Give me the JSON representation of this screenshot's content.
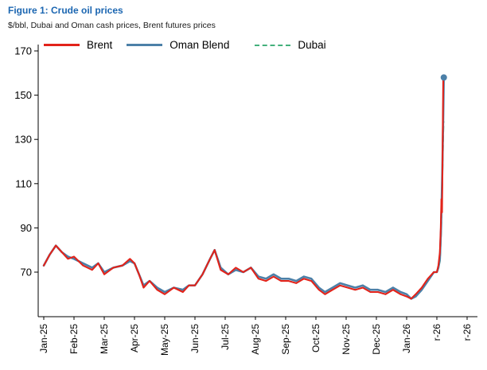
{
  "header": {
    "title": "Figure 1: Crude oil prices",
    "subtitle": "$/bbl, Dubai and Oman cash prices, Brent futures prices"
  },
  "colors": {
    "title_accent": "#1B66B1",
    "axis": "#000000",
    "brent_red": "#E2231A",
    "oman_blue": "#4C80A8",
    "dubai_green": "#44B17C"
  },
  "chart_data": {
    "type": "line",
    "title": "Figure 1: Crude oil prices",
    "subtitle": "$/bbl, Dubai and Oman cash prices, Brent futures prices",
    "xlabel": "",
    "ylabel": "$/bbl",
    "ylim": [
      50,
      170
    ],
    "yticks": [
      70,
      90,
      110,
      130,
      150,
      170
    ],
    "grid": false,
    "legend_position": "top",
    "x_unit": "months since Jan-2025 (tick index = month)",
    "xtick_labels": [
      "Jan-25",
      "Feb-25",
      "Mar-25",
      "Apr-25",
      "May-25",
      "Jun-25",
      "Jul-25",
      "Aug-25",
      "Sep-25",
      "Oct-25",
      "Nov-25",
      "Dec-25",
      "Jan-26",
      "r-26",
      "r-26"
    ],
    "series": [
      {
        "name": "Dubai",
        "color": "#44B17C",
        "style": "dashed",
        "end_marker": false,
        "points": [
          [
            0.0,
            73
          ],
          [
            0.2,
            78
          ],
          [
            0.4,
            82
          ],
          [
            0.6,
            79
          ],
          [
            0.8,
            77
          ],
          [
            1.0,
            76
          ],
          [
            1.3,
            74
          ],
          [
            1.6,
            72
          ],
          [
            1.8,
            74
          ],
          [
            2.0,
            70
          ],
          [
            2.3,
            72
          ],
          [
            2.6,
            73
          ],
          [
            2.85,
            75
          ],
          [
            3.0,
            74
          ],
          [
            3.15,
            69
          ],
          [
            3.3,
            64
          ],
          [
            3.5,
            66
          ],
          [
            3.75,
            63
          ],
          [
            4.0,
            61
          ],
          [
            4.3,
            63
          ],
          [
            4.6,
            62
          ],
          [
            4.8,
            64
          ],
          [
            5.0,
            64
          ],
          [
            5.25,
            69
          ],
          [
            5.5,
            76
          ],
          [
            5.65,
            80
          ],
          [
            5.85,
            72
          ],
          [
            6.1,
            69
          ],
          [
            6.35,
            71
          ],
          [
            6.6,
            70
          ],
          [
            6.85,
            72
          ],
          [
            7.1,
            68
          ],
          [
            7.35,
            67
          ],
          [
            7.6,
            69
          ],
          [
            7.85,
            67
          ],
          [
            8.1,
            67
          ],
          [
            8.35,
            66
          ],
          [
            8.6,
            68
          ],
          [
            8.85,
            67
          ],
          [
            9.1,
            63
          ],
          [
            9.3,
            61
          ],
          [
            9.55,
            63
          ],
          [
            9.8,
            65
          ],
          [
            10.05,
            64
          ],
          [
            10.3,
            63
          ],
          [
            10.55,
            64
          ],
          [
            10.8,
            62
          ],
          [
            11.05,
            62
          ],
          [
            11.3,
            61
          ],
          [
            11.55,
            63
          ],
          [
            11.8,
            61
          ],
          [
            12.0,
            60
          ],
          [
            12.15,
            58
          ],
          [
            12.3,
            59
          ],
          [
            12.5,
            62
          ],
          [
            12.7,
            66
          ],
          [
            12.9,
            70
          ],
          [
            13.0,
            70
          ],
          [
            13.05,
            72
          ],
          [
            13.1,
            75
          ],
          [
            13.14,
            88
          ],
          [
            13.18,
            112
          ],
          [
            13.21,
            133
          ],
          [
            13.22,
            138
          ]
        ]
      },
      {
        "name": "Oman Blend",
        "color": "#4C80A8",
        "style": "solid",
        "end_marker": true,
        "points": [
          [
            0.0,
            73
          ],
          [
            0.2,
            78
          ],
          [
            0.4,
            82
          ],
          [
            0.6,
            79
          ],
          [
            0.8,
            77
          ],
          [
            1.0,
            76
          ],
          [
            1.3,
            74
          ],
          [
            1.6,
            72
          ],
          [
            1.8,
            74
          ],
          [
            2.0,
            70
          ],
          [
            2.3,
            72
          ],
          [
            2.6,
            73
          ],
          [
            2.85,
            75
          ],
          [
            3.0,
            74
          ],
          [
            3.15,
            69
          ],
          [
            3.3,
            64
          ],
          [
            3.5,
            66
          ],
          [
            3.75,
            63
          ],
          [
            4.0,
            61
          ],
          [
            4.3,
            63
          ],
          [
            4.6,
            62
          ],
          [
            4.8,
            64
          ],
          [
            5.0,
            64
          ],
          [
            5.25,
            69
          ],
          [
            5.5,
            76
          ],
          [
            5.65,
            80
          ],
          [
            5.85,
            72
          ],
          [
            6.1,
            69
          ],
          [
            6.35,
            71
          ],
          [
            6.6,
            70
          ],
          [
            6.85,
            72
          ],
          [
            7.1,
            68
          ],
          [
            7.35,
            67
          ],
          [
            7.6,
            69
          ],
          [
            7.85,
            67
          ],
          [
            8.1,
            67
          ],
          [
            8.35,
            66
          ],
          [
            8.6,
            68
          ],
          [
            8.85,
            67
          ],
          [
            9.1,
            63
          ],
          [
            9.3,
            61
          ],
          [
            9.55,
            63
          ],
          [
            9.8,
            65
          ],
          [
            10.05,
            64
          ],
          [
            10.3,
            63
          ],
          [
            10.55,
            64
          ],
          [
            10.8,
            62
          ],
          [
            11.05,
            62
          ],
          [
            11.3,
            61
          ],
          [
            11.55,
            63
          ],
          [
            11.8,
            61
          ],
          [
            12.0,
            60
          ],
          [
            12.15,
            58
          ],
          [
            12.3,
            59
          ],
          [
            12.5,
            62
          ],
          [
            12.7,
            66
          ],
          [
            12.9,
            70
          ],
          [
            13.0,
            70
          ],
          [
            13.05,
            72
          ],
          [
            13.1,
            76
          ],
          [
            13.14,
            90
          ],
          [
            13.18,
            115
          ],
          [
            13.21,
            140
          ],
          [
            13.23,
            158
          ]
        ]
      },
      {
        "name": "Brent",
        "color": "#E2231A",
        "style": "solid",
        "end_marker": false,
        "points": [
          [
            0.0,
            73
          ],
          [
            0.2,
            78
          ],
          [
            0.4,
            82
          ],
          [
            0.6,
            79
          ],
          [
            0.8,
            76
          ],
          [
            1.0,
            77
          ],
          [
            1.3,
            73
          ],
          [
            1.6,
            71
          ],
          [
            1.8,
            74
          ],
          [
            2.0,
            69
          ],
          [
            2.3,
            72
          ],
          [
            2.6,
            73
          ],
          [
            2.85,
            76
          ],
          [
            3.0,
            74
          ],
          [
            3.15,
            69
          ],
          [
            3.3,
            63
          ],
          [
            3.5,
            66
          ],
          [
            3.75,
            62
          ],
          [
            4.0,
            60
          ],
          [
            4.3,
            63
          ],
          [
            4.6,
            61
          ],
          [
            4.8,
            64
          ],
          [
            5.0,
            64
          ],
          [
            5.25,
            69
          ],
          [
            5.5,
            76
          ],
          [
            5.65,
            80
          ],
          [
            5.85,
            71
          ],
          [
            6.1,
            69
          ],
          [
            6.35,
            72
          ],
          [
            6.6,
            70
          ],
          [
            6.85,
            72
          ],
          [
            7.1,
            67
          ],
          [
            7.35,
            66
          ],
          [
            7.6,
            68
          ],
          [
            7.85,
            66
          ],
          [
            8.1,
            66
          ],
          [
            8.35,
            65
          ],
          [
            8.6,
            67
          ],
          [
            8.85,
            66
          ],
          [
            9.1,
            62
          ],
          [
            9.3,
            60
          ],
          [
            9.55,
            62
          ],
          [
            9.8,
            64
          ],
          [
            10.05,
            63
          ],
          [
            10.3,
            62
          ],
          [
            10.55,
            63
          ],
          [
            10.8,
            61
          ],
          [
            11.05,
            61
          ],
          [
            11.3,
            60
          ],
          [
            11.55,
            62
          ],
          [
            11.8,
            60
          ],
          [
            12.0,
            59
          ],
          [
            12.15,
            58
          ],
          [
            12.3,
            60
          ],
          [
            12.5,
            63
          ],
          [
            12.7,
            67
          ],
          [
            12.9,
            70
          ],
          [
            13.0,
            70
          ],
          [
            13.05,
            73
          ],
          [
            13.1,
            79
          ],
          [
            13.13,
            90
          ],
          [
            13.15,
            103
          ],
          [
            13.17,
            97
          ],
          [
            13.19,
            125
          ],
          [
            13.21,
            157
          ]
        ]
      }
    ],
    "legend_order": [
      "Brent",
      "Oman Blend",
      "Dubai"
    ]
  }
}
